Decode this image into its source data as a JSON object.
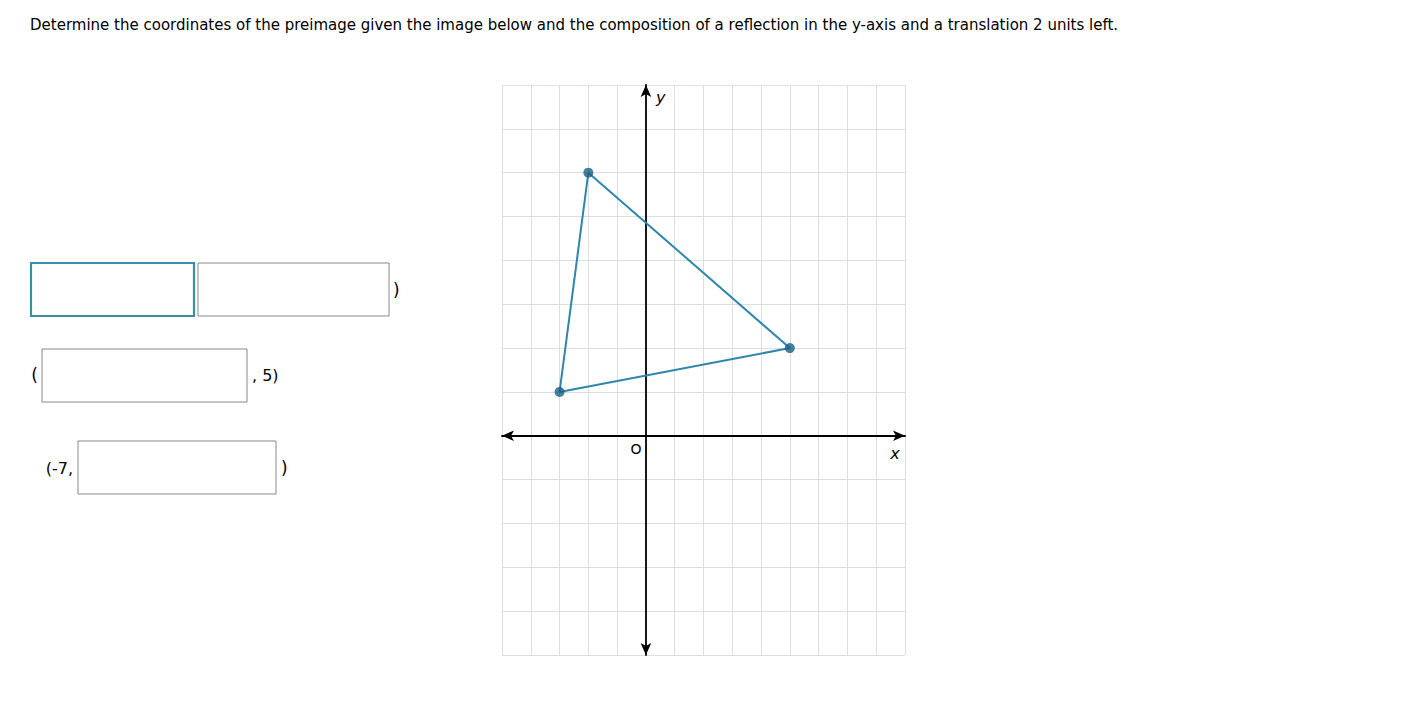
{
  "chart_data": {
    "type": "line",
    "title": "Determine the coordinates of the preimage given the image below and the composition of a reflection in the y-axis and a translation 2 units left.",
    "xlabel": "x",
    "ylabel": "y",
    "series": [
      {
        "type": "line",
        "color": "#2e86ab",
        "x": [
          -2,
          -3,
          5,
          -2
        ],
        "values": [
          6,
          1,
          2,
          6
        ]
      },
      {
        "type": "scatter",
        "color": "#1a5f80",
        "marker": "circle",
        "x": [
          -2,
          -3,
          5
        ],
        "values": [
          6,
          1,
          2
        ]
      }
    ],
    "xlim": [
      -5,
      9
    ],
    "ylim": [
      -5,
      8
    ],
    "xticks": [
      -5,
      -4,
      -3,
      -2,
      -1,
      0,
      1,
      2,
      3,
      4,
      5,
      6,
      7,
      8,
      9
    ],
    "yticks": [
      -5,
      -4,
      -3,
      -2,
      -1,
      0,
      1,
      2,
      3,
      4,
      5,
      6,
      7,
      8
    ],
    "grid": true,
    "tick_labels": false,
    "annotations": [
      "O",
      ")",
      "(",
      ", 5)",
      "(-7,",
      ")"
    ]
  }
}
